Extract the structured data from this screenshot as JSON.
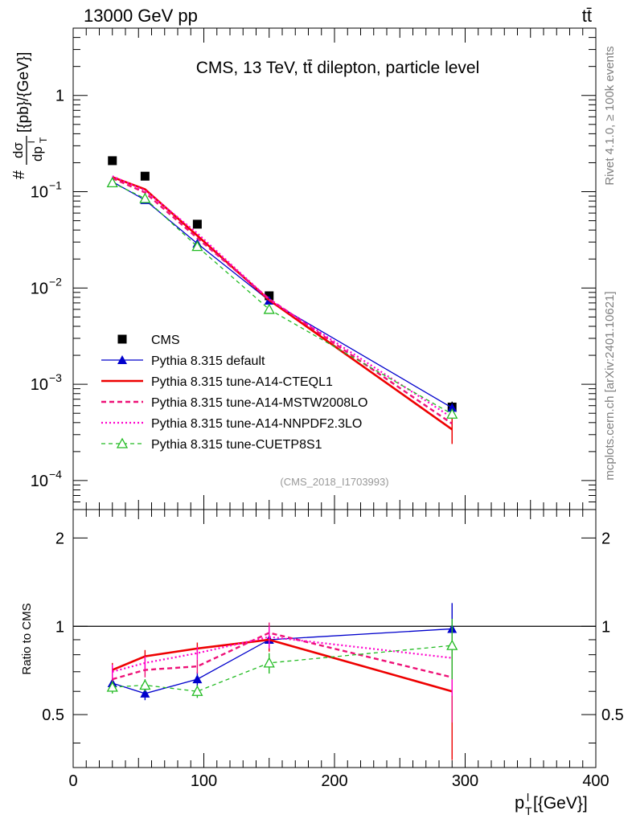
{
  "header": {
    "energy_label": "13000 GeV pp",
    "process_label": "tt̄"
  },
  "side_labels": {
    "rivet": "Rivet 4.1.0, ≥ 100k events",
    "source": "mcplots.cern.ch [arXiv:2401.10621]"
  },
  "colors": {
    "cms": "#000000",
    "default": "#0000cc",
    "a14_cteql1": "#ee0000",
    "a14_mstw": "#ee1177",
    "a14_nnpdf": "#ff00cc",
    "cuetp8s1": "#22bb22"
  },
  "chart_data": [
    {
      "type": "line",
      "title": "CMS, 13 TeV, tt̄ dilepton, particle level",
      "analysis_tag": "(CMS_2018_I1703993)",
      "ylabel": "dσ/dp_T^l [{pb}/{GeV}]",
      "ylabel_parts": {
        "hash": "#",
        "num": "dσ",
        "den": "dp",
        "den_sup": "l",
        "den_sub": "T",
        "units": "[{pb}/{GeV}]"
      },
      "yscale": "log",
      "ylim": [
        5e-05,
        5
      ],
      "xlim": [
        0,
        400
      ],
      "y_ticks": [
        {
          "value": 1,
          "label": "1"
        },
        {
          "value": 0.1,
          "label": "10",
          "exp": "−1"
        },
        {
          "value": 0.01,
          "label": "10",
          "exp": "−2"
        },
        {
          "value": 0.001,
          "label": "10",
          "exp": "−3"
        },
        {
          "value": 0.0001,
          "label": "10",
          "exp": "−4"
        }
      ],
      "x": [
        30,
        55,
        95,
        150,
        290
      ],
      "legend_placement": "bottom-left",
      "series": [
        {
          "key": "cms",
          "name": "CMS",
          "marker": "square",
          "values": [
            0.21,
            0.145,
            0.046,
            0.0083,
            0.00058
          ],
          "errors": [
            0,
            0,
            0,
            0,
            8e-05
          ]
        },
        {
          "key": "default",
          "name": "Pythia 8.315 default",
          "marker": "triangle",
          "dash": "",
          "values": [
            0.127,
            0.082,
            0.029,
            0.0074,
            0.00057
          ]
        },
        {
          "key": "a14_cteql1",
          "name": "Pythia 8.315 tune-A14-CTEQL1",
          "marker": "none",
          "dash": "",
          "values": [
            0.142,
            0.106,
            0.035,
            0.0075,
            0.00034
          ],
          "errors": [
            0,
            0,
            0,
            0,
            0.0001
          ]
        },
        {
          "key": "a14_mstw",
          "name": "Pythia 8.315 tune-A14-MSTW2008LO",
          "marker": "none",
          "dash": "6,4",
          "values": [
            0.138,
            0.098,
            0.033,
            0.0077,
            0.00039
          ]
        },
        {
          "key": "a14_nnpdf",
          "name": "Pythia 8.315 tune-A14-NNPDF2.3LO",
          "marker": "none",
          "dash": "2,3",
          "values": [
            0.145,
            0.103,
            0.037,
            0.0076,
            0.00045
          ]
        },
        {
          "key": "cuetp8s1",
          "name": "Pythia 8.315 tune-CUETP8S1",
          "marker": "open-triangle",
          "dash": "5,4",
          "values": [
            0.124,
            0.085,
            0.027,
            0.006,
            0.00049
          ]
        }
      ]
    },
    {
      "type": "line",
      "ylabel": "Ratio to CMS",
      "xlabel": "p_T^l [{GeV}]",
      "xlabel_parts": {
        "p": "p",
        "sub": "T",
        "sup": "l",
        "units": "[{GeV}]"
      },
      "yscale": "log",
      "ylim": [
        0.33,
        2.5
      ],
      "xlim": [
        0,
        400
      ],
      "y_ticks": [
        {
          "value": 2,
          "label": "2"
        },
        {
          "value": 1,
          "label": "1"
        },
        {
          "value": 0.5,
          "label": "0.5"
        }
      ],
      "x_ticks": [
        {
          "value": 0,
          "label": "0"
        },
        {
          "value": 100,
          "label": "100"
        },
        {
          "value": 200,
          "label": "200"
        },
        {
          "value": 300,
          "label": "300"
        },
        {
          "value": 400,
          "label": "400"
        }
      ],
      "reference_line": 1,
      "x": [
        30,
        55,
        95,
        150,
        290
      ],
      "series": [
        {
          "key": "default",
          "name": "Pythia 8.315 default",
          "marker": "triangle",
          "dash": "",
          "values": [
            0.64,
            0.59,
            0.66,
            0.9,
            0.98
          ],
          "errors": [
            0.04,
            0.03,
            0.04,
            0.07,
            0.22
          ]
        },
        {
          "key": "a14_cteql1",
          "name": "Pythia 8.315 tune-A14-CTEQL1",
          "marker": "none",
          "dash": "",
          "values": [
            0.71,
            0.79,
            0.84,
            0.9,
            0.6
          ],
          "errors": [
            0.04,
            0.04,
            0.04,
            0.08,
            0.25
          ]
        },
        {
          "key": "a14_mstw",
          "name": "Pythia 8.315 tune-A14-MSTW2008LO",
          "marker": "none",
          "dash": "6,4",
          "values": [
            0.66,
            0.71,
            0.73,
            0.95,
            0.67
          ],
          "errors": [
            0.04,
            0.04,
            0.04,
            0.08,
            0.2
          ]
        },
        {
          "key": "a14_nnpdf",
          "name": "Pythia 8.315 tune-A14-NNPDF2.3LO",
          "marker": "none",
          "dash": "2,3",
          "values": [
            0.7,
            0.75,
            0.81,
            0.92,
            0.78
          ],
          "errors": [
            0.04,
            0.04,
            0.04,
            0.08,
            0.2
          ]
        },
        {
          "key": "cuetp8s1",
          "name": "Pythia 8.315 tune-CUETP8S1",
          "marker": "open-triangle",
          "dash": "5,4",
          "values": [
            0.62,
            0.63,
            0.6,
            0.75,
            0.86
          ],
          "errors": [
            0.03,
            0.03,
            0.03,
            0.06,
            0.2
          ]
        }
      ]
    }
  ]
}
